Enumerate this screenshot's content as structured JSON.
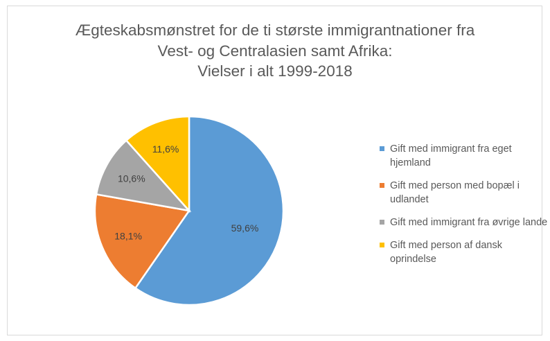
{
  "chart_data": {
    "type": "pie",
    "title_lines": [
      "Ægteskabsmønstret for de ti største immigrantnationer fra",
      "Vest- og Centralasien samt Afrika:",
      "Vielser i alt 1999-2018"
    ],
    "start_angle": "12 o'clock, clockwise",
    "legend_position": "right",
    "slices": [
      {
        "name": "Gift med immigrant fra eget hjemland",
        "value": 59.6,
        "label": "59,6%",
        "color": "#5b9bd5"
      },
      {
        "name": "Gift med person med bopæl i udlandet",
        "value": 18.1,
        "label": "18,1%",
        "color": "#ed7d31"
      },
      {
        "name": "Gift med immigrant fra øvrige lande",
        "value": 10.6,
        "label": "10,6%",
        "color": "#a5a5a5"
      },
      {
        "name": "Gift med person af dansk oprindelse",
        "value": 11.6,
        "label": "11,6%",
        "color": "#ffc000"
      }
    ]
  }
}
